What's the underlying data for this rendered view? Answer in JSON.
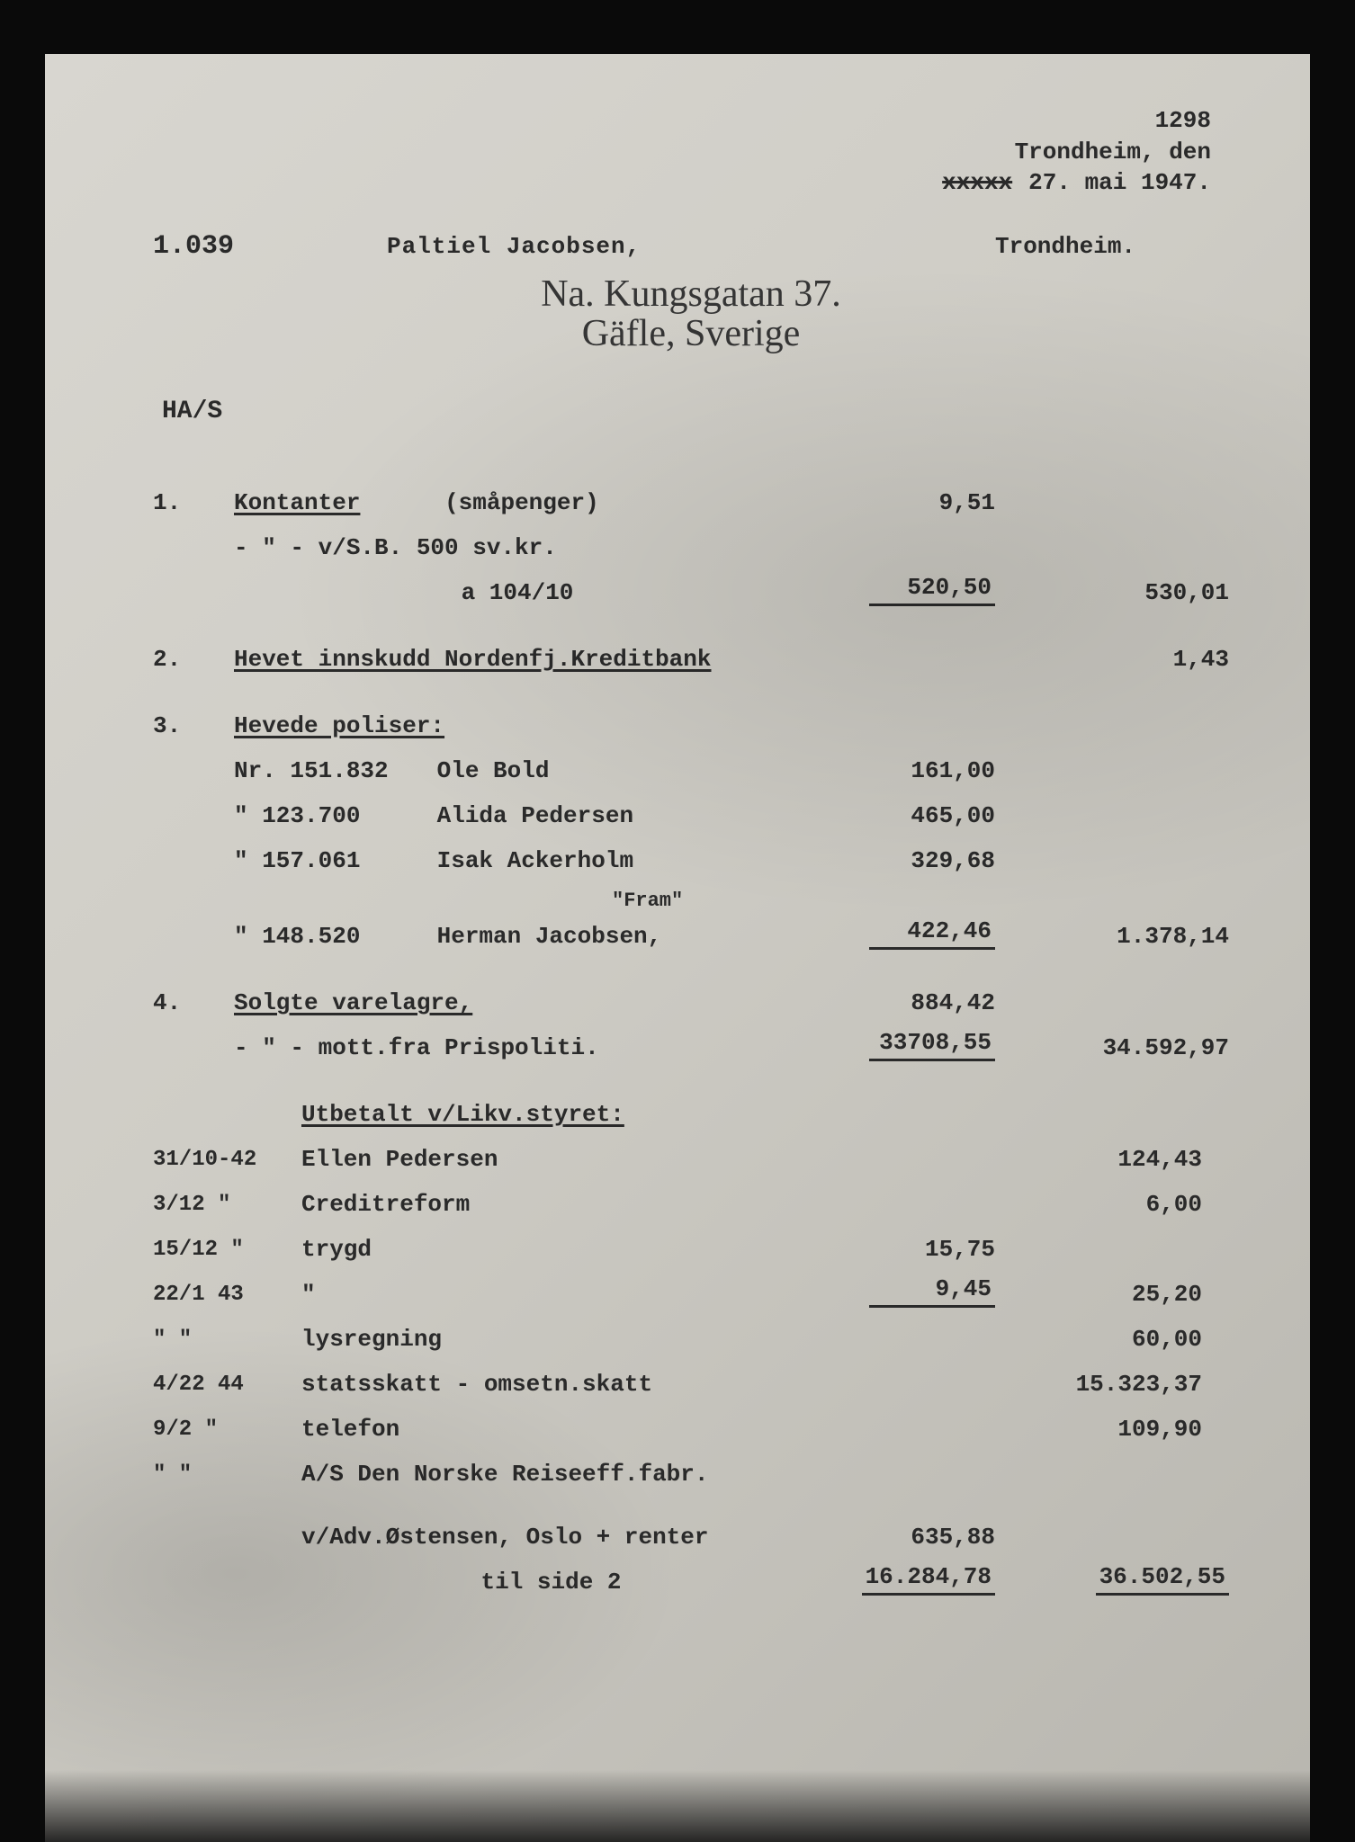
{
  "meta": {
    "page_number": "1298",
    "location": "Trondheim, den",
    "struck": "xxxxx",
    "date": "27. mai 1947."
  },
  "header": {
    "case_no": "1.039",
    "name": "Paltiel Jacobsen,",
    "place": "Trondheim."
  },
  "handwriting": {
    "line1": "Na. Kungsgatan 37.",
    "line2": "Gäfle, Sverige"
  },
  "code": "HA/S",
  "s1": {
    "num": "1.",
    "title": "Kontanter",
    "paren": "(småpenger)",
    "v1": "9,51",
    "l2_desc": "-  \"  -   v/S.B. 500 sv.kr.",
    "l3_desc": "a 104/10",
    "l3_v": "520,50",
    "total": "530,01"
  },
  "s2": {
    "num": "2.",
    "title": "Hevet innskudd Nordenfj.Kreditbank",
    "total": "1,43"
  },
  "s3": {
    "num": "3.",
    "title": "Hevede poliser:",
    "r1": {
      "no": "Nr. 151.832",
      "name": "Ole Bold",
      "v": "161,00"
    },
    "r2": {
      "no": "\"  123.700",
      "name": "Alida Pedersen",
      "v": "465,00"
    },
    "r3": {
      "no": "\"  157.061",
      "name": "Isak Ackerholm",
      "v": "329,68"
    },
    "r3b": {
      "tag": "\"Fram\""
    },
    "r4": {
      "no": "\"  148.520",
      "name": "Herman Jacobsen,",
      "v": "422,46"
    },
    "total": "1.378,14"
  },
  "s4": {
    "num": "4.",
    "title": "Solgte varelagre,",
    "v1": "884,42",
    "l2_desc": "-  \"  -   mott.fra Prispoliti.",
    "l2_v": "33708,55",
    "total": "34.592,97"
  },
  "s5": {
    "title": "Utbetalt v/Likv.styret:",
    "rows": [
      {
        "date": "31/10-42",
        "desc": "Ellen Pedersen",
        "mid": "",
        "sub": "124,43"
      },
      {
        "date": "3/12  \"",
        "desc": "Creditreform",
        "mid": "",
        "sub": "6,00"
      },
      {
        "date": "15/12 \"",
        "desc": "trygd",
        "mid": "15,75",
        "sub": ""
      },
      {
        "date": "22/1  43",
        "desc": "\"",
        "mid": "9,45",
        "sub": "25,20",
        "sum": true
      },
      {
        "date": "\"    \"",
        "desc": "lysregning",
        "mid": "",
        "sub": "60,00"
      },
      {
        "date": "4/22 44",
        "desc": "statsskatt - omsetn.skatt",
        "mid": "",
        "sub": "15.323,37"
      },
      {
        "date": "9/2   \"",
        "desc": "telefon",
        "mid": "",
        "sub": "109,90"
      },
      {
        "date": "\"    \"",
        "desc": "A/S Den Norske Reiseeff.fabr.",
        "mid": "",
        "sub": ""
      }
    ]
  },
  "footer": {
    "l1_desc": "v/Adv.Østensen, Oslo + renter",
    "l1_sub": "635,88",
    "l2_desc": "til side 2",
    "l2_sub": "16.284,78",
    "l2_tot": "36.502,55"
  },
  "colors": {
    "paper_light": "#d8d6d0",
    "paper_dark": "#b8b6af",
    "ink": "#2a2a2a",
    "frame": "#0a0a0a"
  },
  "typography": {
    "base_family": "Courier New",
    "base_pt": 26,
    "hand_family": "Brush Script MT",
    "hand_pt": 42
  }
}
